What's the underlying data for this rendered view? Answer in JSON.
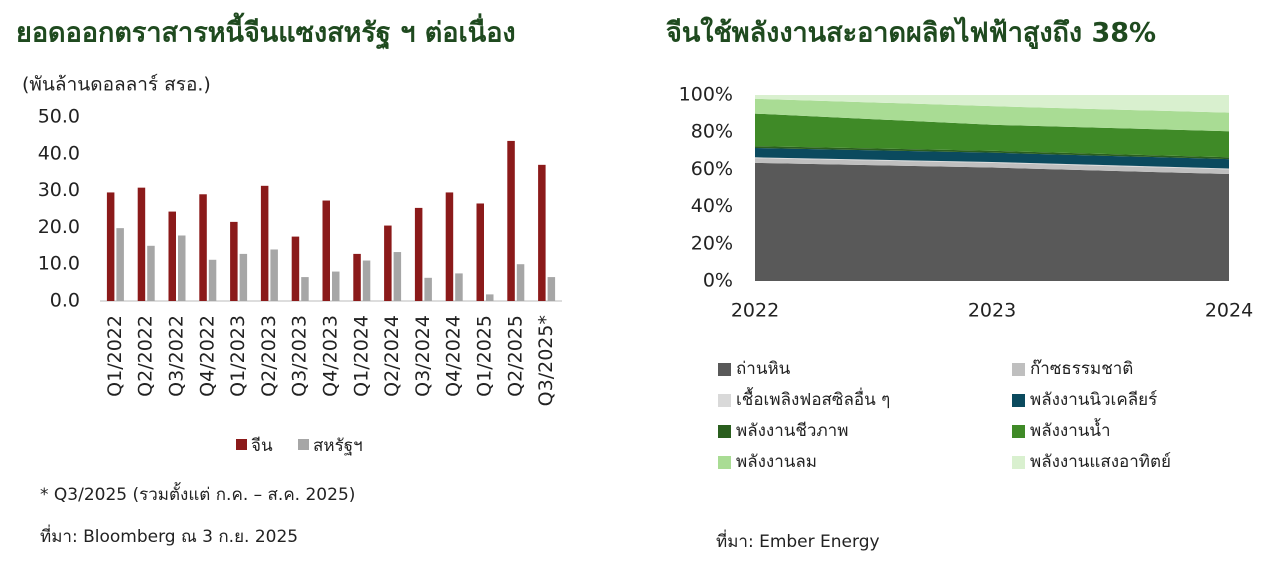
{
  "chart_data": [
    {
      "type": "bar",
      "title": "ยอดออกตราสารหนี้จีนแซงสหรัฐ ฯ ต่อเนื่อง",
      "y_label": "(พันล้านดอลลาร์ สรอ.)",
      "categories": [
        "Q1/2022",
        "Q2/2022",
        "Q3/2022",
        "Q4/2022",
        "Q1/2023",
        "Q2/2023",
        "Q3/2023",
        "Q4/2023",
        "Q1/2024",
        "Q2/2024",
        "Q3/2024",
        "Q4/2024",
        "Q1/2025",
        "Q2/2025",
        "Q3/2025*"
      ],
      "series": [
        {
          "name": "จีน",
          "color": "#8b1a1a",
          "values": [
            29.5,
            30.8,
            24.3,
            29.0,
            21.5,
            31.3,
            17.5,
            27.3,
            12.8,
            20.5,
            25.3,
            29.5,
            26.5,
            43.5,
            37.0
          ]
        },
        {
          "name": "สหรัฐฯ",
          "color": "#a6a6a6",
          "values": [
            19.8,
            15.0,
            17.8,
            11.2,
            12.8,
            14.0,
            6.5,
            8.0,
            11.0,
            13.3,
            6.3,
            7.5,
            1.8,
            10.0,
            6.5
          ]
        }
      ],
      "ylim": [
        0,
        50
      ],
      "yticks": [
        {
          "value": 0,
          "label": "0.0"
        },
        {
          "value": 10,
          "label": "10.0"
        },
        {
          "value": 20,
          "label": "20.0"
        },
        {
          "value": 30,
          "label": "30.0"
        },
        {
          "value": 40,
          "label": "40.0"
        },
        {
          "value": 50,
          "label": "50.0"
        }
      ],
      "legend": "bottom",
      "notes": [
        "* Q3/2025 (รวมตั้งแต่ ก.ค. – ส.ค. 2025)",
        "ที่มา: Bloomberg ณ 3 ก.ย. 2025"
      ]
    },
    {
      "type": "stacked_area",
      "title": "จีนใช้พลังงานสะอาดผลิตไฟฟ้าสูงถึง 38%",
      "x": [
        2022,
        2023,
        2024
      ],
      "series": [
        {
          "name": "ถ่านหิน",
          "color": "#595959",
          "values": [
            63.5,
            61,
            57.5
          ]
        },
        {
          "name": "ก๊าซธรรมชาติ",
          "color": "#bfbfbf",
          "values": [
            2.5,
            2.5,
            2.5
          ]
        },
        {
          "name": "เชื้อเพลิงฟอสซิลอื่น ๆ",
          "color": "#d9d9d9",
          "values": [
            0.5,
            0.5,
            0.5
          ]
        },
        {
          "name": "พลังงานนิวเคลียร์",
          "color": "#0b4a5e",
          "values": [
            5,
            5,
            5
          ]
        },
        {
          "name": "พลังงานชีวภาพ",
          "color": "#2a5e1e",
          "values": [
            1,
            1,
            1
          ]
        },
        {
          "name": "พลังงานน้ำ",
          "color": "#3f8a27",
          "values": [
            17.5,
            14,
            14
          ]
        },
        {
          "name": "พลังงานลม",
          "color": "#a9dc94",
          "values": [
            8,
            10,
            10
          ]
        },
        {
          "name": "พลังงานแสงอาทิตย์",
          "color": "#d9f0cf",
          "values": [
            2,
            6,
            9.5
          ]
        }
      ],
      "xlim": [
        2022,
        2024
      ],
      "xticks": [
        2022,
        2023,
        2024
      ],
      "ylim": [
        0,
        100
      ],
      "yticks": [
        {
          "value": 0,
          "label": "0%"
        },
        {
          "value": 20,
          "label": "20%"
        },
        {
          "value": 40,
          "label": "40%"
        },
        {
          "value": 60,
          "label": "60%"
        },
        {
          "value": 80,
          "label": "80%"
        },
        {
          "value": 100,
          "label": "100%"
        }
      ],
      "legend": "bottom",
      "source": "ที่มา: Ember Energy"
    }
  ]
}
